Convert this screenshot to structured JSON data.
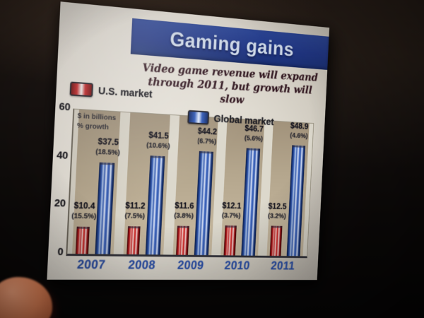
{
  "photo": {
    "background_color": "#140f0c",
    "foreground_object_color": "#e08a5e"
  },
  "slide": {
    "title": "Gaming gains",
    "subtitle_line1": "Video game revenue will expand",
    "subtitle_line2": "through 2011, but growth will slow",
    "banner_color": "#1c3795",
    "year_label_color": "#2b53b4",
    "legend": [
      {
        "label": "U.S. market",
        "color": "#c0181c"
      },
      {
        "label": "Global market",
        "color": "#2a52b4"
      }
    ],
    "axis_note_line1": "$ in billions",
    "axis_note_line2": "% growth"
  },
  "chart_data": {
    "type": "bar",
    "title": "Gaming gains",
    "subtitle": "Video game revenue will expand through 2011, but growth will slow",
    "categories": [
      "2007",
      "2008",
      "2009",
      "2010",
      "2011"
    ],
    "series": [
      {
        "name": "U.S. market",
        "color": "#c0181c",
        "values_billions": [
          10.4,
          11.2,
          11.6,
          12.1,
          12.5
        ],
        "value_labels": [
          "$10.4",
          "$11.2",
          "$11.6",
          "$12.1",
          "$12.5"
        ],
        "growth_pct": [
          15.5,
          7.5,
          3.8,
          3.7,
          3.2
        ],
        "growth_labels": [
          "(15.5%)",
          "(7.5%)",
          "(3.8%)",
          "(3.7%)",
          "(3.2%)"
        ]
      },
      {
        "name": "Global market",
        "color": "#2a52b4",
        "values_billions": [
          37.5,
          41.5,
          44.2,
          46.7,
          48.9
        ],
        "value_labels": [
          "$37.5",
          "$41.5",
          "$44.2",
          "$46.7",
          "$48.9"
        ],
        "growth_pct": [
          18.5,
          10.6,
          6.7,
          5.6,
          4.6
        ],
        "growth_labels": [
          "(18.5%)",
          "(10.6%)",
          "(6.7%)",
          "(5.6%)",
          "(4.6%)"
        ]
      }
    ],
    "ylabel": "$ in billions / % growth",
    "ylim": [
      0,
      60
    ],
    "y_ticks": [
      0,
      20,
      40,
      60
    ],
    "grid": false,
    "legend_position": "top"
  }
}
